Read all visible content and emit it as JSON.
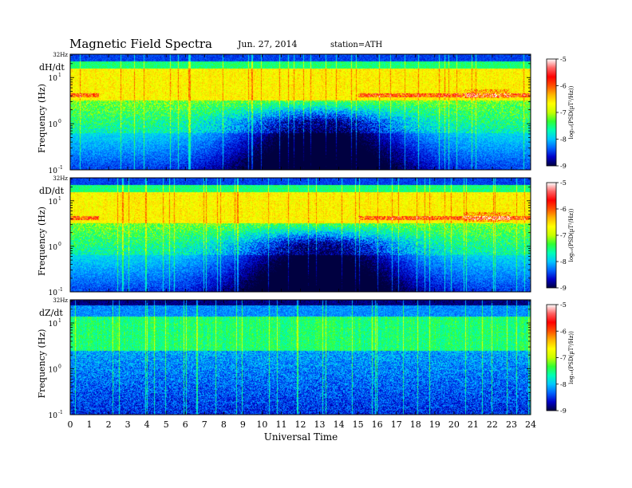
{
  "header": {
    "title": "Magnetic Field Spectra",
    "date": "Jun. 27, 2014",
    "station": "station=ATH"
  },
  "chart_data": {
    "type": "heatmap",
    "xlabel": "Universal Time",
    "x_ticks": [
      "0",
      "1",
      "2",
      "3",
      "4",
      "5",
      "6",
      "7",
      "8",
      "9",
      "10",
      "11",
      "12",
      "13",
      "14",
      "15",
      "16",
      "17",
      "18",
      "19",
      "20",
      "21",
      "22",
      "23",
      "24"
    ],
    "xlim": [
      0,
      24
    ],
    "ylabel": "Frequency (Hz)",
    "y_scale": "log",
    "ylim": [
      0.1,
      32
    ],
    "y_ticks": [
      {
        "value": 0.1,
        "label": "10"
      },
      {
        "value": 1,
        "label": "10"
      },
      {
        "value": 10,
        "label": "10"
      }
    ],
    "y_tick_exponents": [
      "-1",
      "0",
      "1"
    ],
    "top_label": "32Hz",
    "colorbar": {
      "label": "log₁₀(PSD(µT²/Hz))",
      "ticks": [
        "-5",
        "-6",
        "-7",
        "-8",
        "-9"
      ],
      "range": [
        -9,
        -5
      ],
      "colors": [
        "#000040",
        "#0000c8",
        "#0064ff",
        "#00c8ff",
        "#00ffb4",
        "#32ff32",
        "#c8ff00",
        "#ffff00",
        "#ffb400",
        "#ff5000",
        "#ff0000",
        "#ff6464",
        "#ffffff"
      ]
    },
    "panels": [
      {
        "name": "dH/dt"
      },
      {
        "name": "dD/dt"
      },
      {
        "name": "dZ/dt"
      }
    ]
  }
}
